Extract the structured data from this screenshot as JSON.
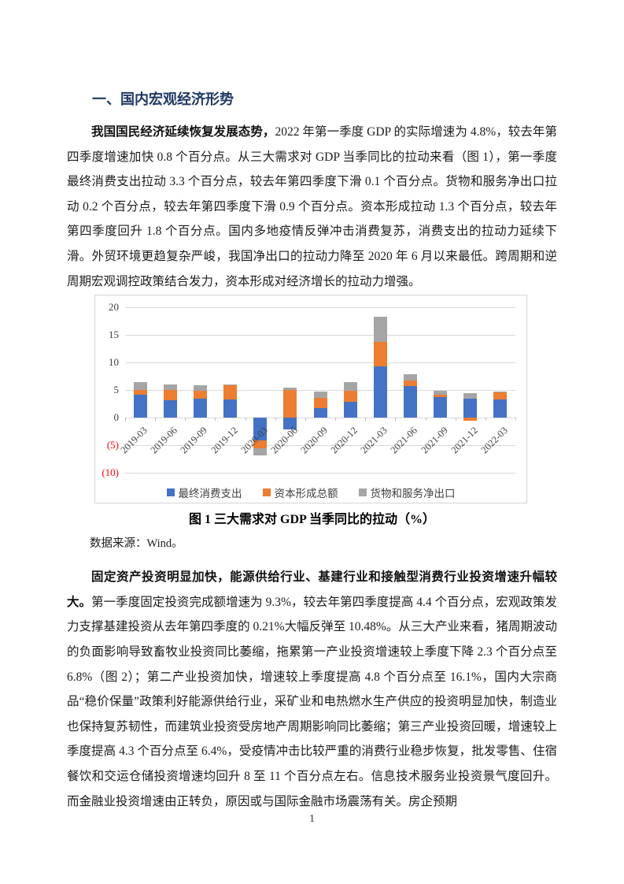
{
  "document": {
    "heading": "一、国内宏观经济形势",
    "page_number": "1"
  },
  "paragraphs": {
    "p1_lead": "我国国民经济延续恢复发展态势，",
    "p1_body": "2022 年第一季度 GDP 的实际增速为 4.8%，较去年第四季度增速加快 0.8 个百分点。从三大需求对 GDP 当季同比的拉动来看（图 1），第一季度最终消费支出拉动 3.3 个百分点，较去年第四季度下滑 0.1 个百分点。货物和服务净出口拉动 0.2 个百分点，较去年第四季度下滑 0.9 个百分点。资本形成拉动 1.3 个百分点，较去年第四季度回升 1.8 个百分点。国内多地疫情反弹冲击消费复苏，消费支出的拉动力延续下滑。外贸环境更趋复杂严峻，我国净出口的拉动力降至 2020 年 6 月以来最低。跨周期和逆周期宏观调控政策结合发力，资本形成对经济增长的拉动力增强。",
    "p2_lead": "固定资产投资明显加快，能源供给行业、基建行业和接触型消费行业投资增速升幅较大。",
    "p2_body": "第一季度固定投资完成额增速为 9.3%，较去年第四季度提高 4.4 个百分点，宏观政策发力支撑基建投资从去年第四季度的 0.21%大幅反弹至 10.48%。从三大产业来看，猪周期波动的负面影响导致畜牧业投资同比萎缩，拖累第一产业投资增速较上季度下降 2.3 个百分点至 6.8%（图 2）；第二产业投资加快，增速较上季度提高 4.8 个百分点至 16.1%，国内大宗商品“稳价保量”政策利好能源供给行业，采矿业和电热燃水生产供应的投资明显加快，制造业也保持复苏韧性，而建筑业投资受房地产周期影响同比萎缩；第三产业投资回暖，增速较上季度提高 4.3 个百分点至 6.4%，受疫情冲击比较严重的消费行业稳步恢复，批发零售、住宿餐饮和交运仓储投资增速均回升 8 至 11 个百分点左右。信息技术服务业投资景气度回升。而金融业投资增速由正转负，原因或与国际金融市场震荡有关。房企预期"
  },
  "figure": {
    "caption": "图 1  三大需求对 GDP 当季同比的拉动（%）",
    "source": "数据来源：Wind。"
  },
  "chart_data": {
    "type": "bar",
    "stacked": true,
    "title": "图 1  三大需求对 GDP 当季同比的拉动（%）",
    "categories": [
      "2019-03",
      "2019-06",
      "2019-09",
      "2019-12",
      "2020-03",
      "2020-06",
      "2020-09",
      "2020-12",
      "2021-03",
      "2021-06",
      "2021-09",
      "2021-12",
      "2022-03"
    ],
    "series": [
      {
        "name": "最终消费支出",
        "color": "#4472C4",
        "values": [
          4.2,
          3.1,
          3.4,
          3.3,
          -4.1,
          -2.1,
          1.7,
          2.9,
          9.3,
          5.8,
          3.7,
          3.4,
          3.3
        ]
      },
      {
        "name": "资本形成总额",
        "color": "#ED7D31",
        "values": [
          0.8,
          1.9,
          1.5,
          2.6,
          -1.5,
          5.0,
          1.9,
          2.0,
          4.4,
          1.0,
          0.5,
          -0.5,
          1.3
        ]
      },
      {
        "name": "货物和服务净出口",
        "color": "#A5A5A5",
        "values": [
          1.4,
          1.0,
          1.0,
          0.1,
          -1.2,
          0.5,
          1.2,
          1.6,
          4.6,
          1.1,
          0.7,
          1.1,
          0.2
        ]
      }
    ],
    "ylim": [
      -10,
      20
    ],
    "yticks": [
      20,
      15,
      10,
      5,
      0,
      -5,
      -10
    ],
    "negative_label_style": "parentheses",
    "negative_label_color": "#FF0000",
    "gridline_color": "#D9D9D9",
    "grid": true,
    "legend_position": "bottom"
  }
}
